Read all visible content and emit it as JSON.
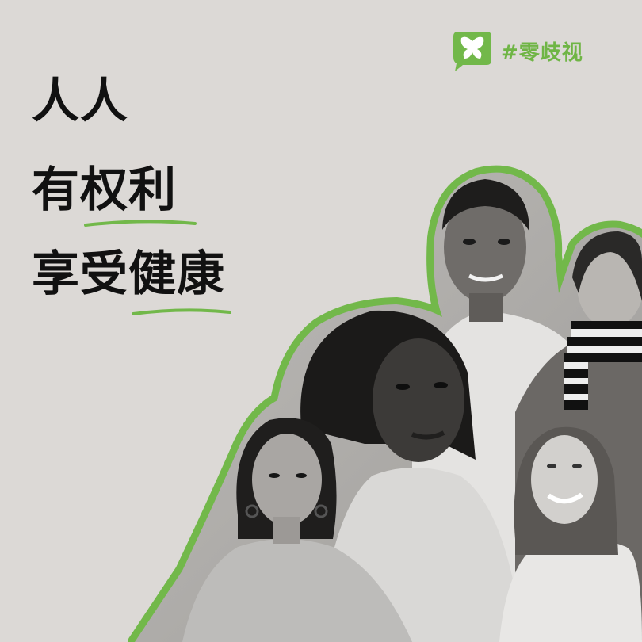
{
  "logo": {
    "text": "#零歧视",
    "icon": "butterfly-icon",
    "color": "#6fb545"
  },
  "headline": {
    "line1": "人人",
    "line2_plain": "有",
    "line2_highlight": "权利",
    "line3_plain": "享受",
    "line3_highlight": "健康"
  },
  "colors": {
    "background": "#dcd9d6",
    "accent": "#6fb545",
    "text": "#111111"
  }
}
